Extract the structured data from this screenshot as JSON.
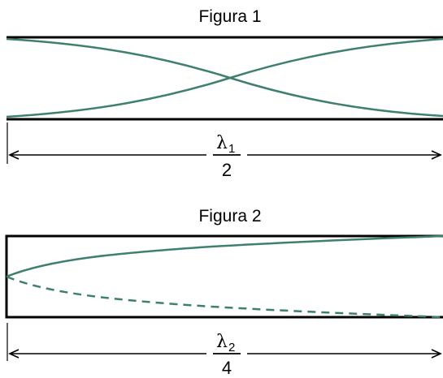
{
  "figure1": {
    "title": "Figura 1",
    "symbol": "λ",
    "subscript": "1",
    "denominator": "2"
  },
  "figure2": {
    "title": "Figura 2",
    "symbol": "λ",
    "subscript": "2",
    "denominator": "4"
  },
  "colors": {
    "wave": "#3e8070",
    "frame": "#000000"
  }
}
